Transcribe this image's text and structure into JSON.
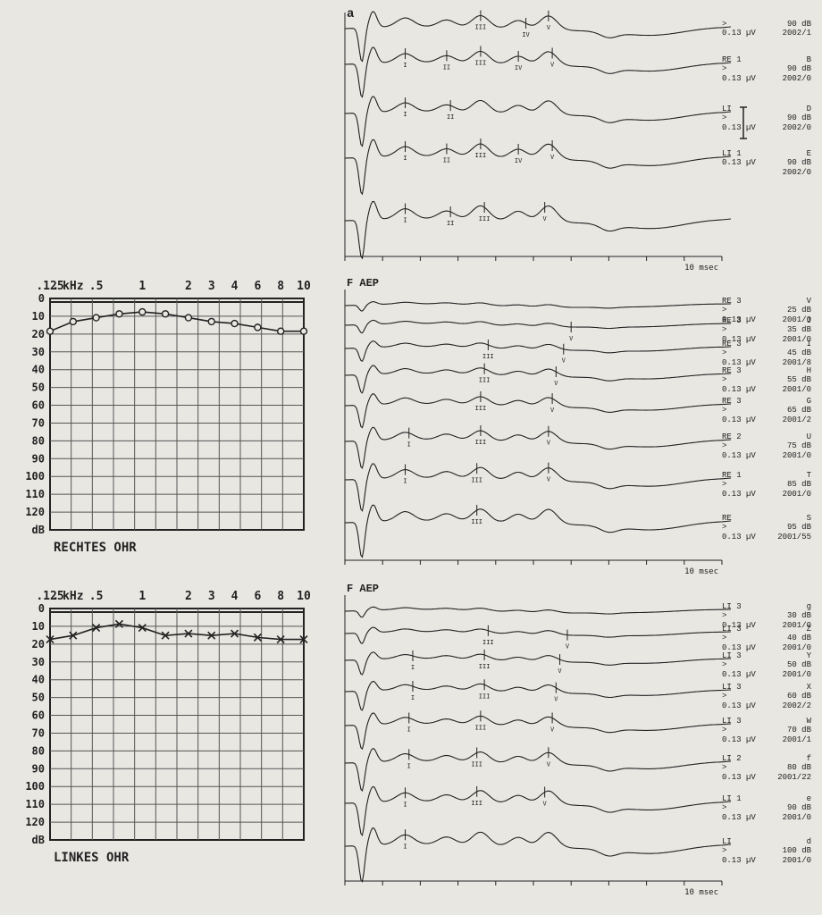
{
  "colors": {
    "bg": "#e8e7e2",
    "ink": "#222222",
    "grid": "#555555"
  },
  "panel_a_label": "a",
  "faep_label": "F AEP",
  "x_axis_label": "10 msec",
  "audiogram_right": {
    "title": "RECHTES OHR",
    "x_ticks": [
      ".125",
      "kHz",
      ".5",
      "1",
      "2",
      "3",
      "4",
      "6",
      "8",
      "10"
    ],
    "y_ticks": [
      "0",
      "10",
      "20",
      "30",
      "40",
      "50",
      "60",
      "70",
      "80",
      "90",
      "100",
      "110",
      "120",
      "dB"
    ],
    "marker": "circle",
    "ylim": [
      0,
      120
    ],
    "points": [
      {
        "x": 0,
        "y": 17
      },
      {
        "x": 1,
        "y": 12
      },
      {
        "x": 2,
        "y": 10
      },
      {
        "x": 3,
        "y": 8
      },
      {
        "x": 4,
        "y": 7
      },
      {
        "x": 5,
        "y": 8
      },
      {
        "x": 6,
        "y": 10
      },
      {
        "x": 7,
        "y": 12
      },
      {
        "x": 8,
        "y": 13
      },
      {
        "x": 9,
        "y": 15
      },
      {
        "x": 10,
        "y": 17
      },
      {
        "x": 11,
        "y": 17
      }
    ]
  },
  "audiogram_left": {
    "title": "LINKES OHR",
    "x_ticks": [
      ".125",
      "kHz",
      ".5",
      "1",
      "2",
      "3",
      "4",
      "6",
      "8",
      "10"
    ],
    "y_ticks": [
      "0",
      "10",
      "20",
      "30",
      "40",
      "50",
      "60",
      "70",
      "80",
      "90",
      "100",
      "110",
      "120",
      "dB"
    ],
    "marker": "x",
    "ylim": [
      0,
      120
    ],
    "points": [
      {
        "x": 0,
        "y": 16
      },
      {
        "x": 1,
        "y": 14
      },
      {
        "x": 2,
        "y": 10
      },
      {
        "x": 3,
        "y": 8
      },
      {
        "x": 4,
        "y": 10
      },
      {
        "x": 5,
        "y": 14
      },
      {
        "x": 6,
        "y": 13
      },
      {
        "x": 7,
        "y": 14
      },
      {
        "x": 8,
        "y": 13
      },
      {
        "x": 9,
        "y": 15
      },
      {
        "x": 10,
        "y": 16
      },
      {
        "x": 11,
        "y": 16
      }
    ]
  },
  "aep_top": {
    "x_range_ms": 10,
    "traces": [
      {
        "labels": [
          ">",
          "0.13 µV"
        ],
        "right": [
          "90 dB",
          "2002/1"
        ],
        "offset": 0,
        "amp": 1.0,
        "peaks": [
          {
            "t": 3.6,
            "l": "III"
          },
          {
            "t": 4.8,
            "l": "IV"
          },
          {
            "t": 5.4,
            "l": "V"
          }
        ]
      },
      {
        "labels": [
          "RE 1",
          ">",
          "0.13 µV"
        ],
        "right": [
          "B",
          "90 dB",
          "2002/0"
        ],
        "offset": 40,
        "amp": 1.0,
        "peaks": [
          {
            "t": 1.6,
            "l": "I"
          },
          {
            "t": 2.7,
            "l": "II"
          },
          {
            "t": 3.6,
            "l": "III"
          },
          {
            "t": 4.6,
            "l": "IV"
          },
          {
            "t": 5.5,
            "l": "V"
          }
        ]
      },
      {
        "labels": [
          "LI",
          ">",
          "0.13 µV"
        ],
        "right": [
          "D",
          "90 dB",
          "2002/0"
        ],
        "offset": 95,
        "amp": 1.0,
        "peaks": [
          {
            "t": 1.6,
            "l": "I"
          },
          {
            "t": 2.8,
            "l": "II"
          }
        ]
      },
      {
        "labels": [
          "LI 1",
          "0.13 µV"
        ],
        "right": [
          "E",
          "90 dB",
          "2002/0"
        ],
        "offset": 145,
        "amp": 1.1,
        "peaks": [
          {
            "t": 1.6,
            "l": "I"
          },
          {
            "t": 2.7,
            "l": "II"
          },
          {
            "t": 3.6,
            "l": "III"
          },
          {
            "t": 4.6,
            "l": "IV"
          },
          {
            "t": 5.5,
            "l": "V"
          }
        ]
      },
      {
        "labels": [],
        "right": [],
        "offset": 215,
        "amp": 1.15,
        "peaks": [
          {
            "t": 1.6,
            "l": "I"
          },
          {
            "t": 2.8,
            "l": "II"
          },
          {
            "t": 3.7,
            "l": "III"
          },
          {
            "t": 5.3,
            "l": "V"
          }
        ]
      }
    ]
  },
  "aep_mid": {
    "x_range_ms": 10,
    "traces": [
      {
        "labels": [
          "RE 3",
          ">",
          "0.13 µV"
        ],
        "right": [
          "V",
          "25 dB",
          "2001/0"
        ],
        "offset": 0,
        "amp": 0.18,
        "peaks": []
      },
      {
        "labels": [
          "RE 3",
          ">",
          "0.13 µV"
        ],
        "right": [
          "J",
          "35 dB",
          "2001/0"
        ],
        "offset": 22,
        "amp": 0.25,
        "peaks": [
          {
            "t": 6.0,
            "l": "V"
          }
        ]
      },
      {
        "labels": [
          "RE 3",
          ">",
          "0.13 µV"
        ],
        "right": [
          "I",
          "45 dB",
          "2001/8"
        ],
        "offset": 48,
        "amp": 0.4,
        "peaks": [
          {
            "t": 3.8,
            "l": "III"
          },
          {
            "t": 5.8,
            "l": "V"
          }
        ]
      },
      {
        "labels": [
          "RE 3",
          ">",
          "0.13 µV"
        ],
        "right": [
          "H",
          "55 dB",
          "2001/0"
        ],
        "offset": 78,
        "amp": 0.55,
        "peaks": [
          {
            "t": 3.7,
            "l": "III"
          },
          {
            "t": 5.6,
            "l": "V"
          }
        ]
      },
      {
        "labels": [
          "RE 3",
          ">",
          "0.13 µV"
        ],
        "right": [
          "G",
          "65 dB",
          "2001/2"
        ],
        "offset": 112,
        "amp": 0.68,
        "peaks": [
          {
            "t": 3.6,
            "l": "III"
          },
          {
            "t": 5.5,
            "l": "V"
          }
        ]
      },
      {
        "labels": [
          "RE 2",
          ">",
          "0.13 µV"
        ],
        "right": [
          "U",
          "75 dB",
          "2001/0"
        ],
        "offset": 152,
        "amp": 0.82,
        "peaks": [
          {
            "t": 1.7,
            "l": "I"
          },
          {
            "t": 3.6,
            "l": "III"
          },
          {
            "t": 5.4,
            "l": "V"
          }
        ]
      },
      {
        "labels": [
          "RE 1",
          ">",
          "0.13 µV"
        ],
        "right": [
          "T",
          "85 dB",
          "2001/0"
        ],
        "offset": 195,
        "amp": 0.95,
        "peaks": [
          {
            "t": 1.6,
            "l": "I"
          },
          {
            "t": 3.5,
            "l": "III"
          },
          {
            "t": 5.4,
            "l": "V"
          }
        ]
      },
      {
        "labels": [
          "RE",
          ">",
          "0.13 µV"
        ],
        "right": [
          "S",
          "95 dB",
          "2001/55"
        ],
        "offset": 243,
        "amp": 1.05,
        "peaks": [
          {
            "t": 3.5,
            "l": "III"
          }
        ]
      }
    ]
  },
  "aep_bot": {
    "x_range_ms": 10,
    "traces": [
      {
        "labels": [
          "LI 3",
          ">",
          "0.13 µV"
        ],
        "right": [
          "g",
          "30 dB",
          "2001/0"
        ],
        "offset": 0,
        "amp": 0.2,
        "peaks": []
      },
      {
        "labels": [
          "LI 3",
          ">",
          "0.13 µV"
        ],
        "right": [
          "Z",
          "40 dB",
          "2001/0"
        ],
        "offset": 25,
        "amp": 0.32,
        "peaks": [
          {
            "t": 3.8,
            "l": "III"
          },
          {
            "t": 5.9,
            "l": "V"
          }
        ]
      },
      {
        "labels": [
          "LI 3",
          ">",
          "0.13 µV"
        ],
        "right": [
          "Y",
          "50 dB",
          "2001/0"
        ],
        "offset": 55,
        "amp": 0.45,
        "peaks": [
          {
            "t": 1.8,
            "l": "I"
          },
          {
            "t": 3.7,
            "l": "III"
          },
          {
            "t": 5.7,
            "l": "V"
          }
        ]
      },
      {
        "labels": [
          "LI 3",
          ">",
          "0.13 µV"
        ],
        "right": [
          "X",
          "60 dB",
          "2002/2"
        ],
        "offset": 90,
        "amp": 0.58,
        "peaks": [
          {
            "t": 1.8,
            "l": "I"
          },
          {
            "t": 3.7,
            "l": "III"
          },
          {
            "t": 5.6,
            "l": "V"
          }
        ]
      },
      {
        "labels": [
          "LI 3",
          ">",
          "0.13 µV"
        ],
        "right": [
          "W",
          "70 dB",
          "2001/1"
        ],
        "offset": 128,
        "amp": 0.72,
        "peaks": [
          {
            "t": 1.7,
            "l": "I"
          },
          {
            "t": 3.6,
            "l": "III"
          },
          {
            "t": 5.5,
            "l": "V"
          }
        ]
      },
      {
        "labels": [
          "LI 2",
          ">",
          "0.13 µV"
        ],
        "right": [
          "f",
          "80 dB",
          "2001/22"
        ],
        "offset": 170,
        "amp": 0.85,
        "peaks": [
          {
            "t": 1.7,
            "l": "I"
          },
          {
            "t": 3.5,
            "l": "III"
          },
          {
            "t": 5.4,
            "l": "V"
          }
        ]
      },
      {
        "labels": [
          "LI 1",
          ">",
          "0.13 µV"
        ],
        "right": [
          "e",
          "90 dB",
          "2001/0"
        ],
        "offset": 215,
        "amp": 0.98,
        "peaks": [
          {
            "t": 1.6,
            "l": "I"
          },
          {
            "t": 3.5,
            "l": "III"
          },
          {
            "t": 5.3,
            "l": "V"
          }
        ]
      },
      {
        "labels": [
          "LI",
          ">",
          "0.13 µV"
        ],
        "right": [
          "d",
          "100 dB",
          "2001/0"
        ],
        "offset": 263,
        "amp": 1.08,
        "peaks": [
          {
            "t": 1.6,
            "l": "I"
          }
        ]
      }
    ]
  }
}
